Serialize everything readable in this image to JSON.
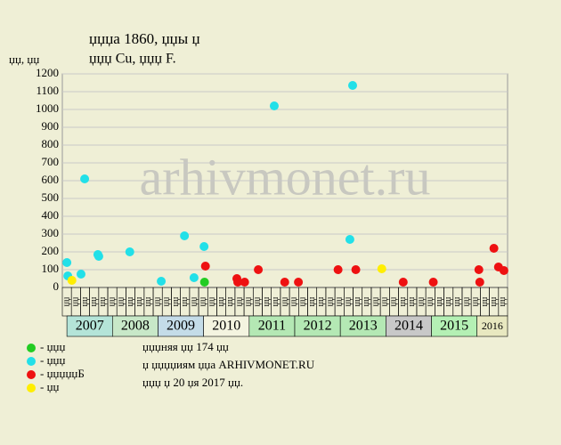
{
  "chart_data": {
    "type": "scatter",
    "title": "џџџа 1860, џџы џ",
    "subtitle": "џџџ Cu, џџџ F.",
    "y_label": "џџ, џџ",
    "watermark": "arhivmonet.ru",
    "xlim": [
      2006.9,
      2016.67
    ],
    "ylim": [
      0,
      1200
    ],
    "yticks": [
      0,
      100,
      200,
      300,
      400,
      500,
      600,
      700,
      800,
      900,
      1000,
      1100,
      1200
    ],
    "grid": true,
    "years": [
      2007,
      2008,
      2009,
      2010,
      2011,
      2012,
      2013,
      2014,
      2015,
      2016
    ],
    "year_colors": [
      "#b4e4d8",
      "#c8e8c8",
      "#c4dce8",
      "#f4f4e0",
      "#b4e8b4",
      "#b4e8b4",
      "#b4e8b4",
      "#c8c8c8",
      "#b4f0b4",
      "#e8e8c0"
    ],
    "columns": [
      "џџ",
      "џџ",
      "џџ",
      "џџ",
      "џџ",
      "џџ",
      "џџ",
      "џџ",
      "џџ",
      "џџ",
      "џџ",
      "џџ",
      "џџ",
      "џџ",
      "џџ",
      "џџ",
      "џџ",
      "џџ",
      "џџ",
      "џџ",
      "џџ",
      "џџ",
      "џџ",
      "џџ",
      "џџ",
      "џџ",
      "џџ",
      "џџ",
      "џџ",
      "џџ",
      "џџ",
      "џџ",
      "џџ",
      "џџ",
      "џџ",
      "џџ",
      "џџ",
      "џџ",
      "џџ",
      "џџ",
      "џџ",
      "џџ",
      "џџ",
      "џџ",
      "џџ",
      "џџ",
      "џџ",
      "џџ",
      "џџ"
    ],
    "series": [
      {
        "name": "- џџџ",
        "color": "#22cc22",
        "x": [
          2010.02
        ],
        "values": [
          30
        ]
      },
      {
        "name": "- џџџ",
        "color": "#22e0e8",
        "x": [
          2007.0,
          2007.02,
          2007.31,
          2007.39,
          2007.68,
          2007.7,
          2008.38,
          2009.07,
          2009.58,
          2009.79,
          2010.01,
          2011.55,
          2013.21,
          2013.27
        ],
        "values": [
          140,
          65,
          75,
          610,
          185,
          175,
          200,
          35,
          290,
          55,
          230,
          1020,
          270,
          1135
        ]
      },
      {
        "name": "- џџџџџБ",
        "color": "#ee1111",
        "x": [
          2010.04,
          2010.73,
          2010.75,
          2010.9,
          2011.2,
          2011.78,
          2012.08,
          2012.95,
          2013.34,
          2014.38,
          2015.04,
          2016.04,
          2016.06,
          2016.37,
          2016.47,
          2016.59
        ],
        "values": [
          120,
          50,
          30,
          30,
          100,
          30,
          30,
          100,
          100,
          30,
          30,
          100,
          30,
          220,
          115,
          95
        ]
      },
      {
        "name": "- џџ",
        "color": "#ffee00",
        "x": [
          2007.11,
          2013.91
        ],
        "values": [
          40,
          105
        ]
      }
    ],
    "notes": [
      "џџџняя џџ 174 џџ",
      "џ џџџџиям џџа ARHIVMONET.RU",
      "џџџ џ 20 џя 2017 џџ."
    ]
  }
}
